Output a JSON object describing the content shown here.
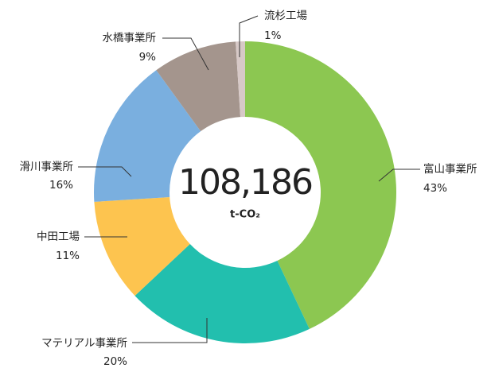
{
  "chart_data": {
    "type": "donut",
    "center_value": "108,186",
    "center_unit": "t-CO₂",
    "categories": [
      "富山事業所",
      "マテリアル事業所",
      "中田工場",
      "滑川事業所",
      "水橋事業所",
      "流杉工場"
    ],
    "values": [
      43,
      20,
      11,
      16,
      9,
      1
    ],
    "value_labels": [
      "43%",
      "20%",
      "11%",
      "16%",
      "9%",
      "1%"
    ],
    "colors": [
      "#8cc751",
      "#22bfae",
      "#fdc44f",
      "#7aafdf",
      "#a4958d",
      "#d7c9c7"
    ]
  }
}
